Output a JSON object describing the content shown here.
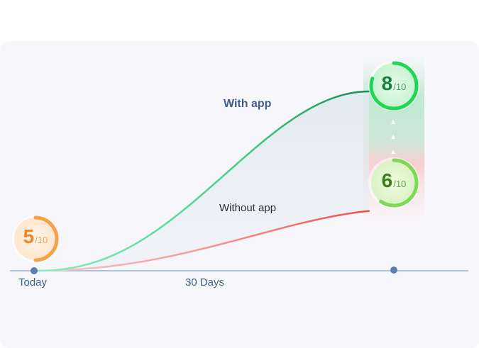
{
  "chart_data": {
    "type": "line",
    "title": "",
    "xlabel": "",
    "ylabel": "",
    "x_ticks": [
      "Today",
      "30 Days"
    ],
    "ylim": [
      5,
      8
    ],
    "series": [
      {
        "name": "With app",
        "start": 5,
        "end": 8,
        "color": "#1e9b5c"
      },
      {
        "name": "Without app",
        "start": 5,
        "end": 6,
        "color": "#ef5350"
      }
    ]
  },
  "scores": {
    "today": {
      "value": "5",
      "denom": "/10",
      "color": "#e8892f"
    },
    "with_app": {
      "value": "8",
      "denom": "/10",
      "color": "#15803d"
    },
    "without_app": {
      "value": "6",
      "denom": "/10",
      "color": "#3f7d1c"
    }
  }
}
